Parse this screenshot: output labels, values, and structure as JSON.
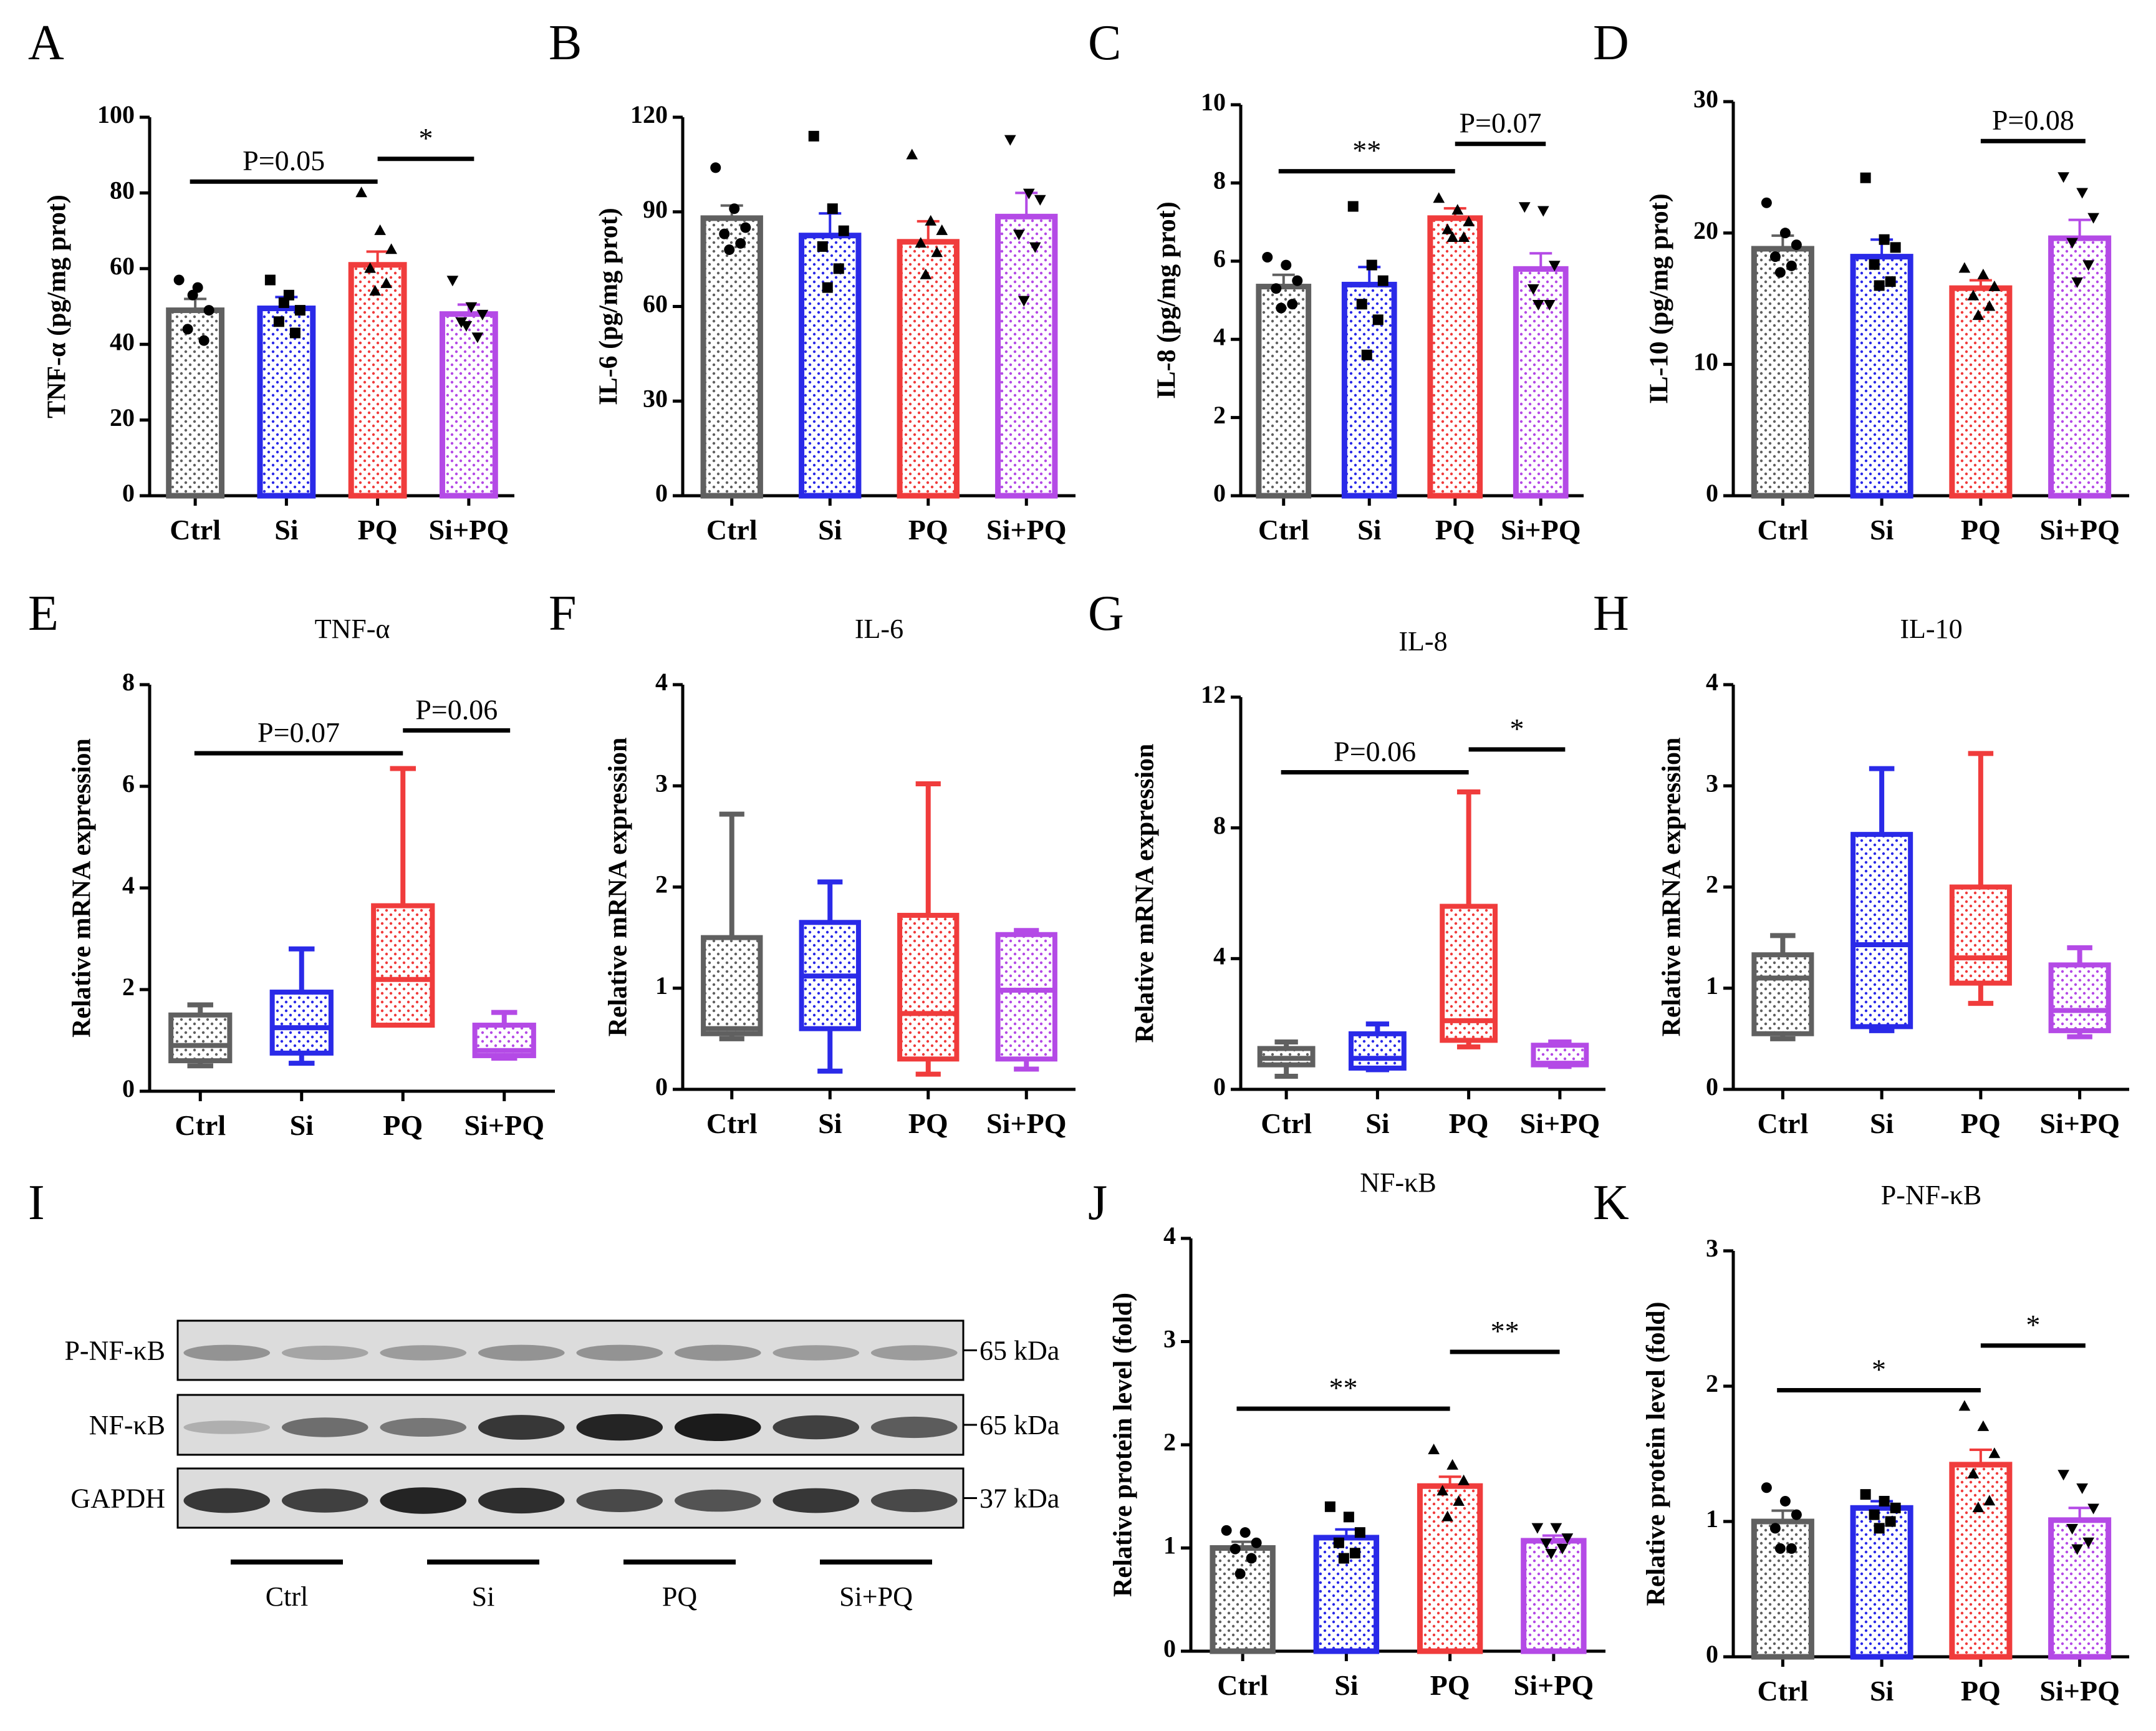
{
  "colors": {
    "Ctrl": "#606060",
    "Si": "#2a2ae8",
    "PQ": "#f03c3c",
    "Si+PQ": "#b44ae6",
    "ink": "#000000"
  },
  "groups": [
    "Ctrl",
    "Si",
    "PQ",
    "Si+PQ"
  ],
  "chart_data": [
    {
      "panel": "A",
      "type": "bar",
      "title": "",
      "ylabel": "TNF-α (pg/mg prot)",
      "ylim": [
        0,
        100
      ],
      "yticks": [
        0,
        20,
        40,
        60,
        80,
        100
      ],
      "categories": [
        "Ctrl",
        "Si",
        "PQ",
        "Si+PQ"
      ],
      "values": [
        49,
        49.5,
        61,
        48
      ],
      "sem": [
        3,
        3,
        3.5,
        2.5
      ],
      "points": [
        [
          57,
          55,
          49,
          44,
          41,
          53
        ],
        [
          57,
          53,
          49,
          46,
          43,
          51
        ],
        [
          80,
          70,
          65,
          60,
          56,
          54
        ],
        [
          57,
          50,
          48,
          46,
          42,
          45
        ]
      ],
      "markers": [
        "circle",
        "square",
        "triangle",
        "triangle-down"
      ],
      "sig": [
        {
          "from": 0,
          "to": 2,
          "y": 83,
          "label": "P=0.05"
        },
        {
          "from": 2,
          "to": 3,
          "y": 89,
          "label": "*"
        }
      ]
    },
    {
      "panel": "B",
      "type": "bar",
      "title": "",
      "ylabel": "IL-6 (pg/mg prot)",
      "ylim": [
        0,
        120
      ],
      "yticks": [
        0,
        30,
        60,
        90,
        120
      ],
      "categories": [
        "Ctrl",
        "Si",
        "PQ",
        "Si+PQ"
      ],
      "values": [
        88,
        82.5,
        80.5,
        88.5
      ],
      "sem": [
        4,
        7,
        6.5,
        7.5
      ],
      "points": [
        [
          104,
          91,
          85,
          83,
          80,
          78
        ],
        [
          114,
          91,
          84,
          79,
          72,
          66
        ],
        [
          108,
          87,
          84,
          80,
          77,
          70
        ],
        [
          113,
          96,
          94,
          83,
          79,
          62
        ]
      ],
      "markers": [
        "circle",
        "square",
        "triangle",
        "triangle-down"
      ],
      "sig": []
    },
    {
      "panel": "C",
      "type": "bar",
      "title": "",
      "ylabel": "IL-8 (pg/mg prot)",
      "ylim": [
        0,
        10
      ],
      "yticks": [
        0,
        2,
        4,
        6,
        8,
        10
      ],
      "categories": [
        "Ctrl",
        "Si",
        "PQ",
        "Si+PQ"
      ],
      "values": [
        5.35,
        5.4,
        7.1,
        5.8
      ],
      "sem": [
        0.3,
        0.45,
        0.25,
        0.4
      ],
      "points": [
        [
          6.1,
          5.9,
          5.5,
          5.3,
          4.9,
          4.8
        ],
        [
          7.4,
          5.9,
          5.5,
          4.9,
          4.5,
          3.6
        ],
        [
          7.6,
          7.3,
          7.0,
          6.8,
          6.6,
          6.6
        ],
        [
          7.4,
          7.3,
          5.9,
          5.3,
          4.9,
          4.9
        ]
      ],
      "markers": [
        "circle",
        "square",
        "triangle",
        "triangle-down"
      ],
      "sig": [
        {
          "from": 0,
          "to": 2,
          "y": 8.3,
          "label": "**"
        },
        {
          "from": 2,
          "to": 3,
          "y": 9.0,
          "label": "P=0.07"
        }
      ]
    },
    {
      "panel": "D",
      "type": "bar",
      "title": "",
      "ylabel": "IL-10 (pg/mg prot)",
      "ylim": [
        0,
        30
      ],
      "yticks": [
        0,
        10,
        20,
        30
      ],
      "categories": [
        "Ctrl",
        "Si",
        "PQ",
        "Si+PQ"
      ],
      "values": [
        18.8,
        18.2,
        15.8,
        19.6
      ],
      "sem": [
        1.0,
        1.3,
        0.6,
        1.4
      ],
      "points": [
        [
          22.3,
          20,
          19.1,
          18.2,
          17.5,
          17
        ],
        [
          24.2,
          19.5,
          18.9,
          17.6,
          16.3,
          16
        ],
        [
          17.3,
          16.8,
          15.9,
          15.2,
          14.4,
          13.7
        ],
        [
          24.3,
          23.1,
          21.2,
          19.3,
          17.6,
          16.3
        ]
      ],
      "markers": [
        "circle",
        "square",
        "triangle",
        "triangle-down"
      ],
      "sig": [
        {
          "from": 2,
          "to": 3,
          "y": 27,
          "label": "P=0.08"
        }
      ]
    },
    {
      "panel": "E",
      "type": "box",
      "title": "TNF-α",
      "ylabel": "Relative mRNA expression",
      "ylim": [
        0,
        8
      ],
      "yticks": [
        0,
        2,
        4,
        6,
        8
      ],
      "categories": [
        "Ctrl",
        "Si",
        "PQ",
        "Si+PQ"
      ],
      "boxes": [
        {
          "min": 0.5,
          "q1": 0.6,
          "median": 0.9,
          "q3": 1.5,
          "max": 1.7
        },
        {
          "min": 0.55,
          "q1": 0.75,
          "median": 1.25,
          "q3": 1.95,
          "max": 2.8
        },
        {
          "min": 1.3,
          "q1": 1.3,
          "median": 2.2,
          "q3": 3.65,
          "max": 6.35
        },
        {
          "min": 0.65,
          "q1": 0.7,
          "median": 0.8,
          "q3": 1.3,
          "max": 1.55
        }
      ],
      "sig": [
        {
          "from": 0,
          "to": 2,
          "y": 6.65,
          "label": "P=0.07"
        },
        {
          "from": 2,
          "to": 3,
          "y": 7.1,
          "label": "P=0.06"
        }
      ]
    },
    {
      "panel": "F",
      "type": "box",
      "title": "IL-6",
      "ylabel": "Relative mRNA expression",
      "ylim": [
        0,
        4
      ],
      "yticks": [
        0,
        1,
        2,
        3,
        4
      ],
      "categories": [
        "Ctrl",
        "Si",
        "PQ",
        "Si+PQ"
      ],
      "boxes": [
        {
          "min": 0.5,
          "q1": 0.55,
          "median": 0.6,
          "q3": 1.5,
          "max": 2.72
        },
        {
          "min": 0.18,
          "q1": 0.6,
          "median": 1.12,
          "q3": 1.65,
          "max": 2.05
        },
        {
          "min": 0.15,
          "q1": 0.3,
          "median": 0.75,
          "q3": 1.72,
          "max": 3.02
        },
        {
          "min": 0.2,
          "q1": 0.3,
          "median": 0.98,
          "q3": 1.53,
          "max": 1.57
        }
      ],
      "sig": []
    },
    {
      "panel": "G",
      "type": "box",
      "title": "IL-8",
      "ylabel": "Relative mRNA expression",
      "ylim": [
        0,
        12
      ],
      "yticks": [
        0,
        4,
        8,
        12
      ],
      "categories": [
        "Ctrl",
        "Si",
        "PQ",
        "Si+PQ"
      ],
      "boxes": [
        {
          "min": 0.4,
          "q1": 0.75,
          "median": 0.95,
          "q3": 1.25,
          "max": 1.45
        },
        {
          "min": 0.6,
          "q1": 0.65,
          "median": 0.95,
          "q3": 1.7,
          "max": 2.0
        },
        {
          "min": 1.3,
          "q1": 1.5,
          "median": 2.1,
          "q3": 5.6,
          "max": 9.1
        },
        {
          "min": 0.7,
          "q1": 0.75,
          "median": 0.8,
          "q3": 1.35,
          "max": 1.45
        }
      ],
      "sig": [
        {
          "from": 0,
          "to": 2,
          "y": 9.7,
          "label": "P=0.06"
        },
        {
          "from": 2,
          "to": 3,
          "y": 10.4,
          "label": "*"
        }
      ]
    },
    {
      "panel": "H",
      "type": "box",
      "title": "IL-10",
      "ylabel": "Relative mRNA expression",
      "ylim": [
        0,
        4
      ],
      "yticks": [
        0,
        1,
        2,
        3,
        4
      ],
      "categories": [
        "Ctrl",
        "Si",
        "PQ",
        "Si+PQ"
      ],
      "boxes": [
        {
          "min": 0.5,
          "q1": 0.55,
          "median": 1.1,
          "q3": 1.33,
          "max": 1.52
        },
        {
          "min": 0.58,
          "q1": 0.62,
          "median": 1.43,
          "q3": 2.52,
          "max": 3.17
        },
        {
          "min": 0.85,
          "q1": 1.05,
          "median": 1.3,
          "q3": 2.0,
          "max": 3.32
        },
        {
          "min": 0.52,
          "q1": 0.58,
          "median": 0.78,
          "q3": 1.23,
          "max": 1.4
        }
      ],
      "sig": []
    },
    {
      "panel": "J",
      "type": "bar",
      "title": "NF-κB",
      "ylabel": "Relative protein level (fold)",
      "ylim": [
        0,
        4
      ],
      "yticks": [
        0,
        1,
        2,
        3,
        4
      ],
      "categories": [
        "Ctrl",
        "Si",
        "PQ",
        "Si+PQ"
      ],
      "values": [
        1.0,
        1.1,
        1.6,
        1.07
      ],
      "sem": [
        0.06,
        0.08,
        0.09,
        0.05
      ],
      "points": [
        [
          1.17,
          1.15,
          1.05,
          0.99,
          0.9,
          0.75
        ],
        [
          1.4,
          1.3,
          1.15,
          1.05,
          0.95,
          0.9
        ],
        [
          1.95,
          1.8,
          1.65,
          1.55,
          1.45,
          1.3
        ],
        [
          1.2,
          1.2,
          1.1,
          1.05,
          1.0,
          0.95
        ]
      ],
      "markers": [
        "circle",
        "square",
        "triangle",
        "triangle-down"
      ],
      "sig": [
        {
          "from": 0,
          "to": 2,
          "y": 2.35,
          "label": "**"
        },
        {
          "from": 2,
          "to": 3,
          "y": 2.9,
          "label": "**"
        }
      ]
    },
    {
      "panel": "K",
      "type": "bar",
      "title": "P-NF-κB",
      "ylabel": "Relative protein level (fold)",
      "ylim": [
        0,
        3
      ],
      "yticks": [
        0,
        1,
        2,
        3
      ],
      "categories": [
        "Ctrl",
        "Si",
        "PQ",
        "Si+PQ"
      ],
      "values": [
        1.0,
        1.1,
        1.42,
        1.01
      ],
      "sem": [
        0.08,
        0.05,
        0.11,
        0.09
      ],
      "points": [
        [
          1.25,
          1.15,
          1.05,
          0.95,
          0.8,
          0.8
        ],
        [
          1.2,
          1.15,
          1.1,
          1.05,
          1.0,
          0.95
        ],
        [
          1.85,
          1.7,
          1.5,
          1.35,
          1.15,
          1.1
        ],
        [
          1.35,
          1.25,
          1.1,
          0.95,
          0.85,
          0.8
        ]
      ],
      "markers": [
        "circle",
        "square",
        "triangle",
        "triangle-down"
      ],
      "sig": [
        {
          "from": 0,
          "to": 2,
          "y": 1.97,
          "label": "*"
        },
        {
          "from": 2,
          "to": 3,
          "y": 2.3,
          "label": "*"
        }
      ]
    }
  ],
  "panel_letters": [
    "A",
    "B",
    "C",
    "D",
    "E",
    "F",
    "G",
    "H",
    "I",
    "J",
    "K"
  ],
  "western": {
    "panel": "I",
    "rows": [
      {
        "label": "P-NF-κB",
        "size": "65 kDa",
        "intensity": [
          0.35,
          0.25,
          0.3,
          0.35,
          0.35,
          0.35,
          0.3,
          0.3
        ]
      },
      {
        "label": "NF-κB",
        "size": "65 kDa",
        "intensity": [
          0.2,
          0.55,
          0.5,
          0.85,
          0.95,
          1.0,
          0.8,
          0.65
        ]
      },
      {
        "label": "GAPDH",
        "size": "37 kDa",
        "intensity": [
          0.85,
          0.8,
          0.95,
          0.9,
          0.75,
          0.7,
          0.85,
          0.75
        ]
      }
    ],
    "groups": [
      "Ctrl",
      "Si",
      "PQ",
      "Si+PQ"
    ]
  }
}
